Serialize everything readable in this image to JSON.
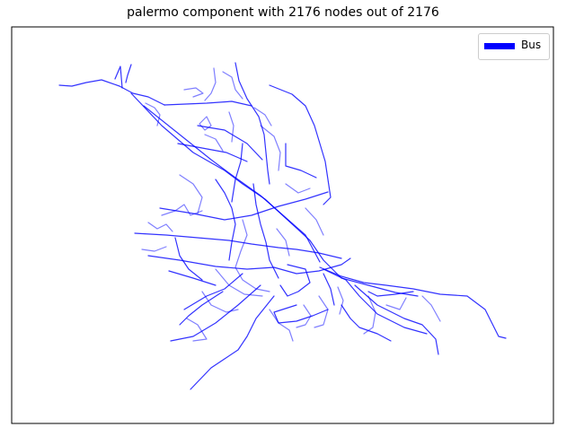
{
  "title": "palermo component with 2176 nodes out of 2176",
  "legend": {
    "label": "Bus",
    "color": "#0000ff"
  },
  "network": {
    "mode": "Bus",
    "nodes": 2176,
    "total_nodes": 2176,
    "edge_color": "#0000ff",
    "icon": "bus-route-network"
  }
}
